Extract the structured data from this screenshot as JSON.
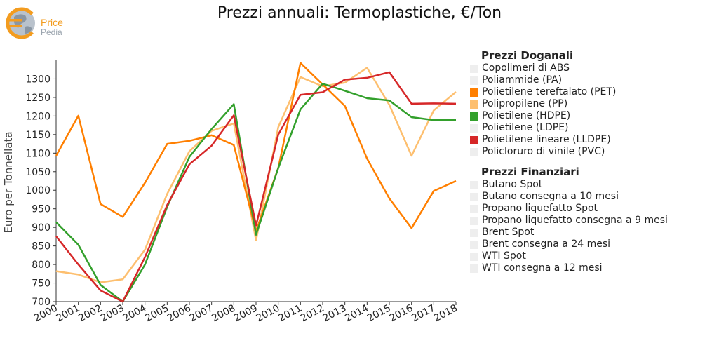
{
  "logo": {
    "brand_primary": "Price",
    "brand_secondary": "Pedia",
    "icon": "euro-globe-icon"
  },
  "chart_data": {
    "type": "line",
    "title": "Prezzi annuali: Termoplastiche, €/Ton",
    "ylabel": "Euro per Tonnellata",
    "xlabel": "",
    "ylim": [
      700,
      1350
    ],
    "yticks": [
      700,
      750,
      800,
      850,
      900,
      950,
      1000,
      1050,
      1100,
      1150,
      1200,
      1250,
      1300
    ],
    "x": [
      "2000",
      "2001",
      "2002",
      "2003",
      "2004",
      "2005",
      "2006",
      "2007",
      "2008",
      "2009",
      "2010",
      "2011",
      "2012",
      "2013",
      "2014",
      "2015",
      "2016",
      "2017",
      "2018"
    ],
    "grid": false,
    "legend_position": "right",
    "series": [
      {
        "name": "Polipropilene (PP)",
        "color": "#fdbf6f",
        "values": [
          782,
          773,
          752,
          760,
          840,
          990,
          1105,
          1160,
          1180,
          865,
          1170,
          1305,
          1280,
          1290,
          1330,
          1230,
          1093,
          1215,
          1265
        ]
      },
      {
        "name": "Polietilene tereftalato (PET)",
        "color": "#ff7f00",
        "values": [
          1093,
          1201,
          963,
          928,
          1020,
          1125,
          1133,
          1148,
          1122,
          890,
          1060,
          1343,
          1285,
          1227,
          1085,
          978,
          898,
          998,
          1025
        ]
      },
      {
        "name": "Polietilene (HDPE)",
        "color": "#33a02c",
        "values": [
          914,
          853,
          745,
          700,
          800,
          955,
          1090,
          1165,
          1232,
          880,
          1060,
          1218,
          1287,
          1268,
          1248,
          1242,
          1197,
          1189,
          1190
        ]
      },
      {
        "name": "Polietilene lineare (LLDPE)",
        "color": "#d62728",
        "values": [
          876,
          800,
          730,
          700,
          820,
          960,
          1070,
          1120,
          1202,
          905,
          1150,
          1257,
          1264,
          1298,
          1303,
          1318,
          1233,
          1234,
          1233
        ]
      }
    ]
  },
  "legend": {
    "doganali": {
      "title": "Prezzi Doganali",
      "items": [
        {
          "label": "Copolimeri di ABS",
          "color": "#eeeeee"
        },
        {
          "label": "Poliammide (PA)",
          "color": "#eeeeee"
        },
        {
          "label": "Polietilene tereftalato (PET)",
          "color": "#ff7f00"
        },
        {
          "label": "Polipropilene (PP)",
          "color": "#fdbf6f"
        },
        {
          "label": "Polietilene (HDPE)",
          "color": "#33a02c"
        },
        {
          "label": "Polietilene (LDPE)",
          "color": "#eeeeee"
        },
        {
          "label": "Polietilene lineare (LLDPE)",
          "color": "#d62728"
        },
        {
          "label": "Policloruro di vinile (PVC)",
          "color": "#eeeeee"
        }
      ]
    },
    "finanziari": {
      "title": "Prezzi Finanziari",
      "items": [
        {
          "label": "Butano Spot",
          "color": "#eeeeee"
        },
        {
          "label": "Butano consegna a 10 mesi",
          "color": "#eeeeee"
        },
        {
          "label": "Propano liquefatto Spot",
          "color": "#eeeeee"
        },
        {
          "label": "Propano liquefatto consegna a 9 mesi",
          "color": "#eeeeee"
        },
        {
          "label": "Brent Spot",
          "color": "#eeeeee"
        },
        {
          "label": "Brent consegna a 24 mesi",
          "color": "#eeeeee"
        },
        {
          "label": "WTI Spot",
          "color": "#eeeeee"
        },
        {
          "label": "WTI consegna a 12 mesi",
          "color": "#eeeeee"
        }
      ]
    }
  }
}
